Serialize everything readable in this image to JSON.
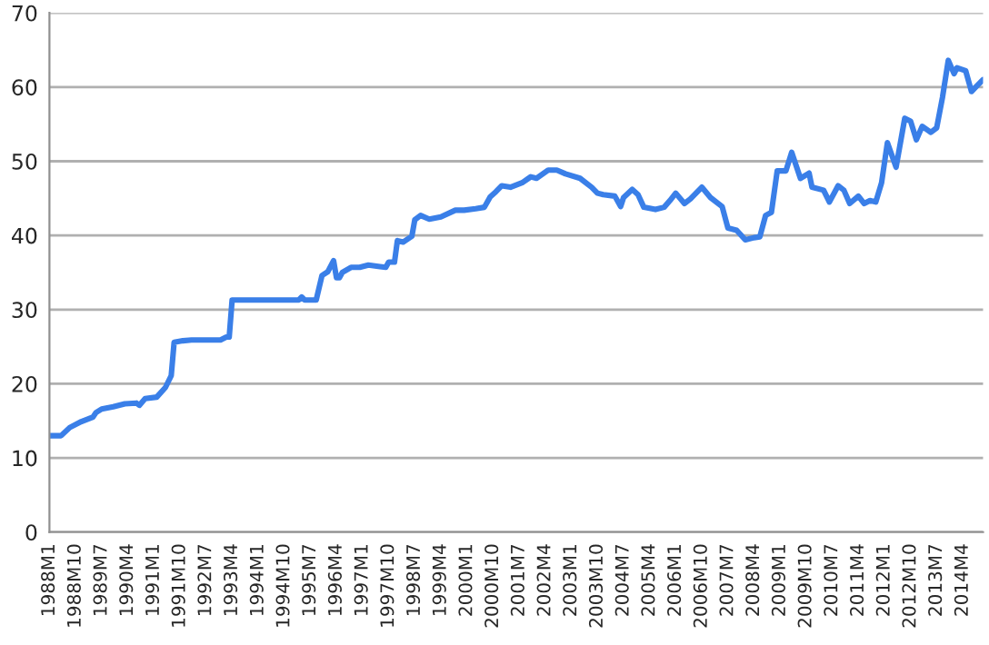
{
  "chart_data": {
    "type": "line",
    "series": [
      {
        "color": "#3a7fe8",
        "x": [
          "1988-01",
          "1988-05",
          "1988-08",
          "1988-12",
          "1989-04",
          "1989-05",
          "1989-07",
          "1989-11",
          "1990-03",
          "1990-07",
          "1990-08",
          "1990-10",
          "1991-02",
          "1991-05",
          "1991-07",
          "1991-08",
          "1991-11",
          "1992-02",
          "1992-12",
          "1993-02",
          "1993-03",
          "1993-04",
          "1995-03",
          "1995-04",
          "1995-05",
          "1995-09",
          "1995-11",
          "1996-01",
          "1996-03",
          "1996-04",
          "1996-05",
          "1996-06",
          "1996-09",
          "1996-12",
          "1997-03",
          "1997-07",
          "1997-09",
          "1997-10",
          "1997-12",
          "1998-01",
          "1998-03",
          "1998-06",
          "1998-07",
          "1998-09",
          "1998-12",
          "1999-04",
          "1999-09",
          "1999-12",
          "2000-04",
          "2000-07",
          "2000-09",
          "2000-11",
          "2001-01",
          "2001-04",
          "2001-08",
          "2001-11",
          "2002-01",
          "2002-05",
          "2002-08",
          "2002-11",
          "2003-04",
          "2003-08",
          "2003-10",
          "2003-12",
          "2004-04",
          "2004-06",
          "2004-07",
          "2004-10",
          "2004-12",
          "2005-02",
          "2005-06",
          "2005-09",
          "2005-11",
          "2006-01",
          "2006-04",
          "2006-06",
          "2006-10",
          "2007-01",
          "2007-05",
          "2007-07",
          "2007-10",
          "2008-01",
          "2008-04",
          "2008-06",
          "2008-08",
          "2008-10",
          "2008-12",
          "2009-03",
          "2009-05",
          "2009-08",
          "2009-11",
          "2009-12",
          "2010-04",
          "2010-06",
          "2010-09",
          "2010-11",
          "2011-01",
          "2011-04",
          "2011-06",
          "2011-08",
          "2011-10",
          "2011-12",
          "2012-02",
          "2012-05",
          "2012-08",
          "2012-10",
          "2012-12",
          "2013-02",
          "2013-05",
          "2013-07",
          "2013-09",
          "2013-11",
          "2014-01",
          "2014-02",
          "2014-05",
          "2014-07",
          "2014-09",
          "2014-11"
        ],
        "values": [
          13.0,
          13.0,
          14.1,
          14.9,
          15.5,
          16.1,
          16.6,
          16.9,
          17.3,
          17.4,
          17.1,
          18.0,
          18.2,
          19.5,
          21.1,
          25.6,
          25.8,
          25.9,
          25.9,
          26.3,
          26.3,
          31.3,
          31.3,
          31.7,
          31.3,
          31.3,
          34.6,
          35.1,
          36.6,
          34.3,
          34.3,
          35.0,
          35.7,
          35.7,
          36.0,
          35.8,
          35.7,
          36.4,
          36.4,
          39.3,
          39.1,
          39.9,
          42.1,
          42.7,
          42.2,
          42.5,
          43.4,
          43.4,
          43.6,
          43.8,
          45.2,
          45.9,
          46.7,
          46.5,
          47.1,
          47.9,
          47.7,
          48.8,
          48.8,
          48.3,
          47.7,
          46.5,
          45.7,
          45.5,
          45.3,
          43.9,
          45.1,
          46.2,
          45.5,
          43.8,
          43.5,
          43.8,
          44.7,
          45.7,
          44.3,
          44.9,
          46.5,
          45.1,
          43.9,
          41.0,
          40.7,
          39.4,
          39.7,
          39.8,
          42.7,
          43.1,
          48.7,
          48.7,
          51.2,
          47.7,
          48.4,
          46.5,
          46.1,
          44.5,
          46.7,
          46.1,
          44.3,
          45.3,
          44.3,
          44.7,
          44.5,
          47.1,
          52.5,
          49.2,
          55.8,
          55.4,
          52.9,
          54.7,
          53.9,
          54.5,
          58.6,
          63.6,
          61.8,
          62.6,
          62.2,
          59.4,
          60.2,
          61.0
        ]
      }
    ],
    "xlim": [
      "1988-01",
      "2014-11"
    ],
    "xticks": [
      {
        "value": "1988-01",
        "label": "1988M1"
      },
      {
        "value": "1988-10",
        "label": "1988M10"
      },
      {
        "value": "1989-07",
        "label": "1989M7"
      },
      {
        "value": "1990-04",
        "label": "1990M4"
      },
      {
        "value": "1991-01",
        "label": "1991M1"
      },
      {
        "value": "1991-10",
        "label": "1991M10"
      },
      {
        "value": "1992-07",
        "label": "1992M7"
      },
      {
        "value": "1993-04",
        "label": "1993M4"
      },
      {
        "value": "1994-01",
        "label": "1994M1"
      },
      {
        "value": "1994-10",
        "label": "1994M10"
      },
      {
        "value": "1995-07",
        "label": "1995M7"
      },
      {
        "value": "1996-04",
        "label": "1996M4"
      },
      {
        "value": "1997-01",
        "label": "1997M1"
      },
      {
        "value": "1997-10",
        "label": "1997M10"
      },
      {
        "value": "1998-07",
        "label": "1998M7"
      },
      {
        "value": "1999-04",
        "label": "1999M4"
      },
      {
        "value": "2000-01",
        "label": "2000M1"
      },
      {
        "value": "2000-10",
        "label": "2000M10"
      },
      {
        "value": "2001-07",
        "label": "2001M7"
      },
      {
        "value": "2002-04",
        "label": "2002M4"
      },
      {
        "value": "2003-01",
        "label": "2003M1"
      },
      {
        "value": "2003-10",
        "label": "2003M10"
      },
      {
        "value": "2004-07",
        "label": "2004M7"
      },
      {
        "value": "2005-04",
        "label": "2005M4"
      },
      {
        "value": "2006-01",
        "label": "2006M1"
      },
      {
        "value": "2006-10",
        "label": "2006M10"
      },
      {
        "value": "2007-07",
        "label": "2007M7"
      },
      {
        "value": "2008-04",
        "label": "2008M4"
      },
      {
        "value": "2009-01",
        "label": "2009M1"
      },
      {
        "value": "2009-10",
        "label": "2009M10"
      },
      {
        "value": "2010-07",
        "label": "2010M7"
      },
      {
        "value": "2011-04",
        "label": "2011M4"
      },
      {
        "value": "2012-01",
        "label": "2012M1"
      },
      {
        "value": "2012-10",
        "label": "2012M10"
      },
      {
        "value": "2013-07",
        "label": "2013M7"
      },
      {
        "value": "2014-04",
        "label": "2014M4"
      }
    ],
    "ylim": [
      0,
      70
    ],
    "yticks": [
      0,
      10,
      20,
      30,
      40,
      50,
      60,
      70
    ],
    "grid": "y",
    "legend": false
  }
}
